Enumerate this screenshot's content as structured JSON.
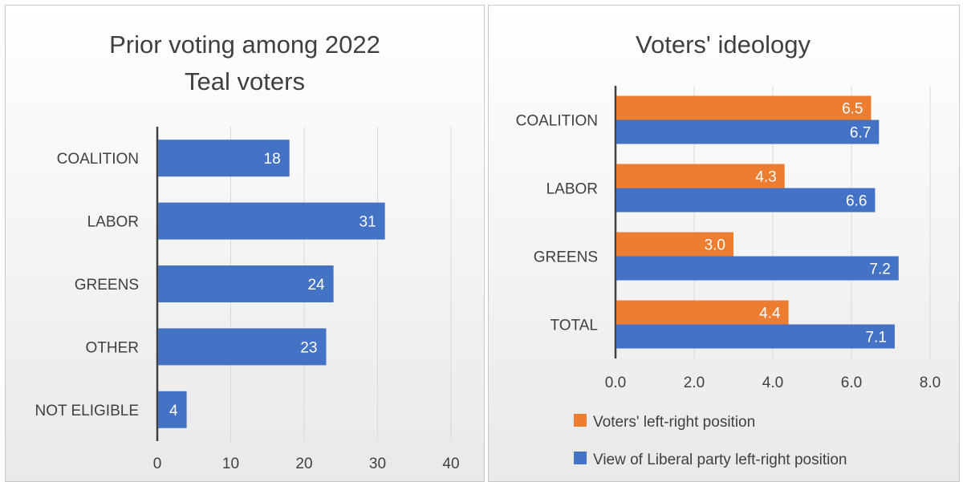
{
  "colors": {
    "blue": "#4472c4",
    "orange": "#ed7d31",
    "text": "#404040",
    "grid": "#d9d9d9",
    "axis": "#404040"
  },
  "chart_data": [
    {
      "type": "bar",
      "orientation": "horizontal",
      "title": "Prior voting among 2022 Teal voters",
      "title_lines": [
        "Prior voting among 2022",
        "Teal voters"
      ],
      "categories": [
        "COALITION",
        "LABOR",
        "GREENS",
        "OTHER",
        "NOT ELIGIBLE"
      ],
      "values": [
        18,
        31,
        24,
        23,
        4
      ],
      "xlim": [
        0,
        40
      ],
      "xticks": [
        "0",
        "10",
        "20",
        "30",
        "40"
      ],
      "grid": true,
      "legend": "none"
    },
    {
      "type": "bar",
      "orientation": "horizontal",
      "title": "Voters' ideology",
      "categories": [
        "COALITION",
        "LABOR",
        "GREENS",
        "TOTAL"
      ],
      "series": [
        {
          "name": "Voters' left-right position",
          "color": "#ed7d31",
          "values": [
            6.5,
            4.3,
            3.0,
            4.4
          ],
          "labels": [
            "6.5",
            "4.3",
            "3.0",
            "4.4"
          ]
        },
        {
          "name": "View of Liberal party left-right position",
          "color": "#4472c4",
          "values": [
            6.7,
            6.6,
            7.2,
            7.1
          ],
          "labels": [
            "6.7",
            "6.6",
            "7.2",
            "7.1"
          ]
        }
      ],
      "xlim": [
        0,
        8
      ],
      "xticks": [
        "0.0",
        "2.0",
        "4.0",
        "6.0",
        "8.0"
      ],
      "grid": true,
      "legend": "bottom"
    }
  ]
}
